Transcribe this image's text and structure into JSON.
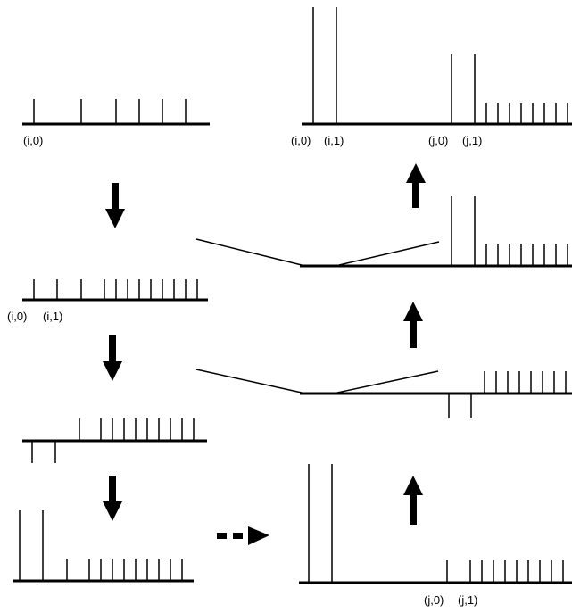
{
  "colors": {
    "ink": "#000000",
    "background": "#ffffff"
  },
  "labels": {
    "p1_i0": "(i,0)",
    "p2_i0": "(i,0)",
    "p2_i1": "(i,1)",
    "top_i0": "(i,0)",
    "top_i1": "(i,1)",
    "top_j0": "(j,0)",
    "top_j1": "(j,1)",
    "bottom_j0": "(j,0)",
    "bottom_j1": "(j,1)"
  },
  "icons": {
    "down": "arrow-down-icon",
    "up": "arrow-up-icon",
    "dashed": "dashed-arrow-right-icon"
  }
}
